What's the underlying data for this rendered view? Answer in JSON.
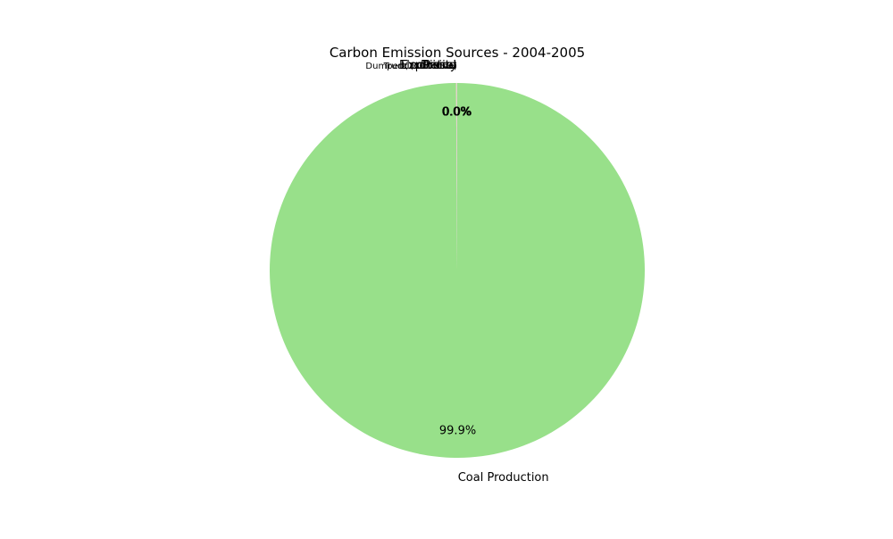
{
  "chart_data": {
    "type": "pie",
    "title": "Carbon Emission Sources - 2004-2005",
    "start_angle_deg": 90,
    "direction": "clockwise",
    "categories": [
      "Coal Production",
      "Explosive",
      "Diesel",
      "Petrol",
      "Electricity",
      "Truck (40 tonne)",
      "Dumper (120 tonne)"
    ],
    "values": [
      99.9,
      0.02,
      0.02,
      0.02,
      0.02,
      0.01,
      0.01
    ],
    "percent_labels": [
      "99.9%",
      "0.0%",
      "0.0%",
      "0.0%",
      "0.0%",
      "0.0%",
      "0.0%"
    ],
    "colors": [
      "#98e08a",
      "#f4b6b6",
      "#c9a27e",
      "#f7c98b",
      "#b7c8f0",
      "#d7b5e8",
      "#b5e3e8"
    ]
  }
}
